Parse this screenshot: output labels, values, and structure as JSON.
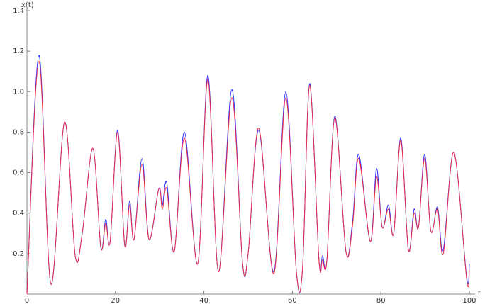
{
  "chart_data": {
    "type": "line",
    "xlabel": "t",
    "ylabel": "x(t)",
    "x": [
      0,
      2.7,
      5.4,
      8.5,
      10.9,
      12.5,
      14.9,
      16.7,
      17.8,
      18.8,
      20.5,
      22.1,
      23.2,
      24.2,
      26.0,
      27.6,
      29.8,
      30.6,
      31.6,
      33.3,
      35.6,
      38.6,
      40.9,
      43.3,
      46.3,
      48.7,
      50.0,
      52.4,
      55.8,
      58.5,
      60.9,
      62.3,
      63.9,
      66.0,
      66.8,
      67.8,
      69.6,
      72.1,
      73.6,
      75.0,
      77.6,
      79.0,
      80.3,
      81.7,
      82.9,
      84.5,
      86.2,
      87.5,
      88.5,
      89.9,
      91.3,
      92.8,
      94.1,
      96.5,
      99.4,
      100
    ],
    "series": [
      {
        "color": "#2a2aff",
        "values": [
          0,
          1.18,
          0.05,
          0.85,
          0.19,
          0.3,
          0.72,
          0.23,
          0.37,
          0.26,
          0.81,
          0.24,
          0.46,
          0.27,
          0.67,
          0.27,
          0.52,
          0.44,
          0.55,
          0.21,
          0.8,
          0.15,
          1.08,
          0.11,
          1.01,
          0.16,
          0.2,
          0.81,
          0.11,
          1.0,
          0.11,
          0.13,
          1.04,
          0.17,
          0.19,
          0.17,
          0.88,
          0.21,
          0.36,
          0.69,
          0.26,
          0.62,
          0.33,
          0.44,
          0.3,
          0.77,
          0.22,
          0.42,
          0.33,
          0.69,
          0.31,
          0.43,
          0.22,
          0.7,
          0.08,
          0.15
        ]
      },
      {
        "color": "#e8304a",
        "values": [
          0,
          1.15,
          0.05,
          0.85,
          0.19,
          0.3,
          0.72,
          0.23,
          0.35,
          0.26,
          0.8,
          0.24,
          0.44,
          0.27,
          0.64,
          0.27,
          0.52,
          0.42,
          0.52,
          0.21,
          0.77,
          0.15,
          1.06,
          0.11,
          0.97,
          0.16,
          0.2,
          0.82,
          0.1,
          0.97,
          0.11,
          0.13,
          1.03,
          0.17,
          0.17,
          0.17,
          0.87,
          0.21,
          0.34,
          0.67,
          0.26,
          0.58,
          0.33,
          0.42,
          0.3,
          0.76,
          0.22,
          0.4,
          0.33,
          0.67,
          0.31,
          0.42,
          0.2,
          0.7,
          0.07,
          0.12
        ]
      }
    ],
    "xlim": [
      0,
      100
    ],
    "xticks": [
      0,
      20,
      40,
      60,
      80,
      100
    ],
    "ylim": [
      0,
      1.4
    ],
    "yticks": [
      0.2,
      0.4,
      0.6,
      0.8,
      {
        "value": 1,
        "label": "1.0"
      },
      1.2,
      1.4
    ]
  }
}
